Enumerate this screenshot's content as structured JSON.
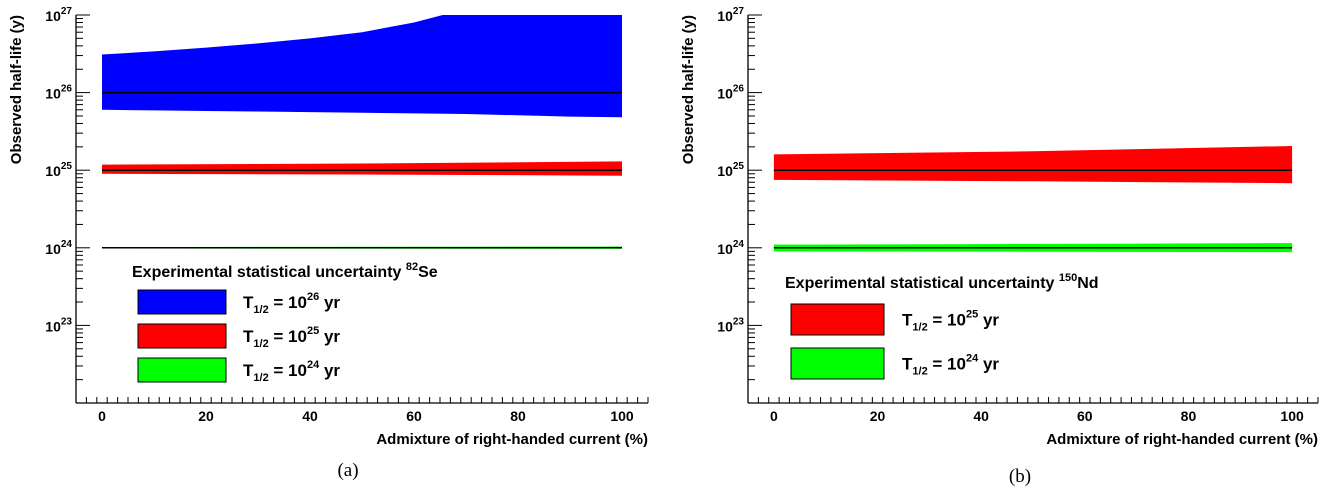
{
  "chart_data": [
    {
      "type": "area",
      "panel": "a",
      "caption": "(a)",
      "xlabel": "Admixture of right-handed current (%)",
      "ylabel": "Observed half-life (y)",
      "xlim": [
        -5,
        105
      ],
      "ylim": [
        1e+22,
        1e+27
      ],
      "yscale": "log",
      "x_ticks": [
        0,
        20,
        40,
        60,
        80,
        100
      ],
      "y_ticks": [
        {
          "base": "10",
          "exp": "23",
          "value": 1e+23
        },
        {
          "base": "10",
          "exp": "24",
          "value": 1e+24
        },
        {
          "base": "10",
          "exp": "25",
          "value": 1e+25
        },
        {
          "base": "10",
          "exp": "26",
          "value": 1e+26
        },
        {
          "base": "10",
          "exp": "27",
          "value": 1e+27
        }
      ],
      "legend": {
        "title": "Experimental statistical uncertainty",
        "title_isotope_mass": "82",
        "title_isotope": "Se",
        "placement": "lower-left"
      },
      "series": [
        {
          "label_prefix": "T",
          "label_sub": "1/2",
          "label_mid": " = 10",
          "label_exp": "26",
          "label_suffix": " yr",
          "color": "#0000ff",
          "central": 1e+26,
          "x": [
            0,
            10,
            20,
            30,
            40,
            50,
            60,
            70,
            80,
            90,
            100
          ],
          "upper": [
            3.1e+26,
            3.4e+26,
            3.8e+26,
            4.3e+26,
            5e+26,
            6e+26,
            8e+26,
            1.2e+27,
            1.5e+27,
            1.8e+27,
            2e+27
          ],
          "lower": [
            6e+25,
            5.9e+25,
            5.8e+25,
            5.7e+25,
            5.6e+25,
            5.5e+25,
            5.4e+25,
            5.3e+25,
            5.1e+25,
            4.9e+25,
            4.8e+25
          ]
        },
        {
          "label_prefix": "T",
          "label_sub": "1/2",
          "label_mid": " = 10",
          "label_exp": "25",
          "label_suffix": " yr",
          "color": "#ff0000",
          "central": 1e+25,
          "x": [
            0,
            50,
            100
          ],
          "upper": [
            1.18e+25,
            1.22e+25,
            1.3e+25
          ],
          "lower": [
            9e+24,
            8.8e+24,
            8.5e+24
          ]
        },
        {
          "label_prefix": "T",
          "label_sub": "1/2",
          "label_mid": " = 10",
          "label_exp": "24",
          "label_suffix": " yr",
          "color": "#00ff00",
          "central": 1e+24,
          "x": [
            0,
            100
          ],
          "upper": [
            1.02e+24,
            1.04e+24
          ],
          "lower": [
            9.8e+23,
            9.7e+23
          ]
        }
      ]
    },
    {
      "type": "area",
      "panel": "b",
      "caption": "(b)",
      "xlabel": "Admixture of right-handed current (%)",
      "ylabel": "Observed half-life (y)",
      "xlim": [
        -5,
        105
      ],
      "ylim": [
        1e+22,
        1e+27
      ],
      "yscale": "log",
      "x_ticks": [
        0,
        20,
        40,
        60,
        80,
        100
      ],
      "y_ticks": [
        {
          "base": "10",
          "exp": "23",
          "value": 1e+23
        },
        {
          "base": "10",
          "exp": "24",
          "value": 1e+24
        },
        {
          "base": "10",
          "exp": "25",
          "value": 1e+25
        },
        {
          "base": "10",
          "exp": "26",
          "value": 1e+26
        },
        {
          "base": "10",
          "exp": "27",
          "value": 1e+27
        }
      ],
      "legend": {
        "title": "Experimental statistical uncertainty",
        "title_isotope_mass": "150",
        "title_isotope": "Nd",
        "placement": "lower-left"
      },
      "series": [
        {
          "label_prefix": "T",
          "label_sub": "1/2",
          "label_mid": " = 10",
          "label_exp": "25",
          "label_suffix": " yr",
          "color": "#ff0000",
          "central": 1e+25,
          "x": [
            0,
            50,
            100
          ],
          "upper": [
            1.6e+25,
            1.75e+25,
            2.05e+25
          ],
          "lower": [
            7.5e+24,
            7.2e+24,
            6.8e+24
          ]
        },
        {
          "label_prefix": "T",
          "label_sub": "1/2",
          "label_mid": " = 10",
          "label_exp": "24",
          "label_suffix": " yr",
          "color": "#00ff00",
          "central": 1e+24,
          "x": [
            0,
            50,
            100
          ],
          "upper": [
            1.1e+24,
            1.12e+24,
            1.15e+24
          ],
          "lower": [
            9e+23,
            8.9e+23,
            8.8e+23
          ]
        }
      ]
    }
  ]
}
